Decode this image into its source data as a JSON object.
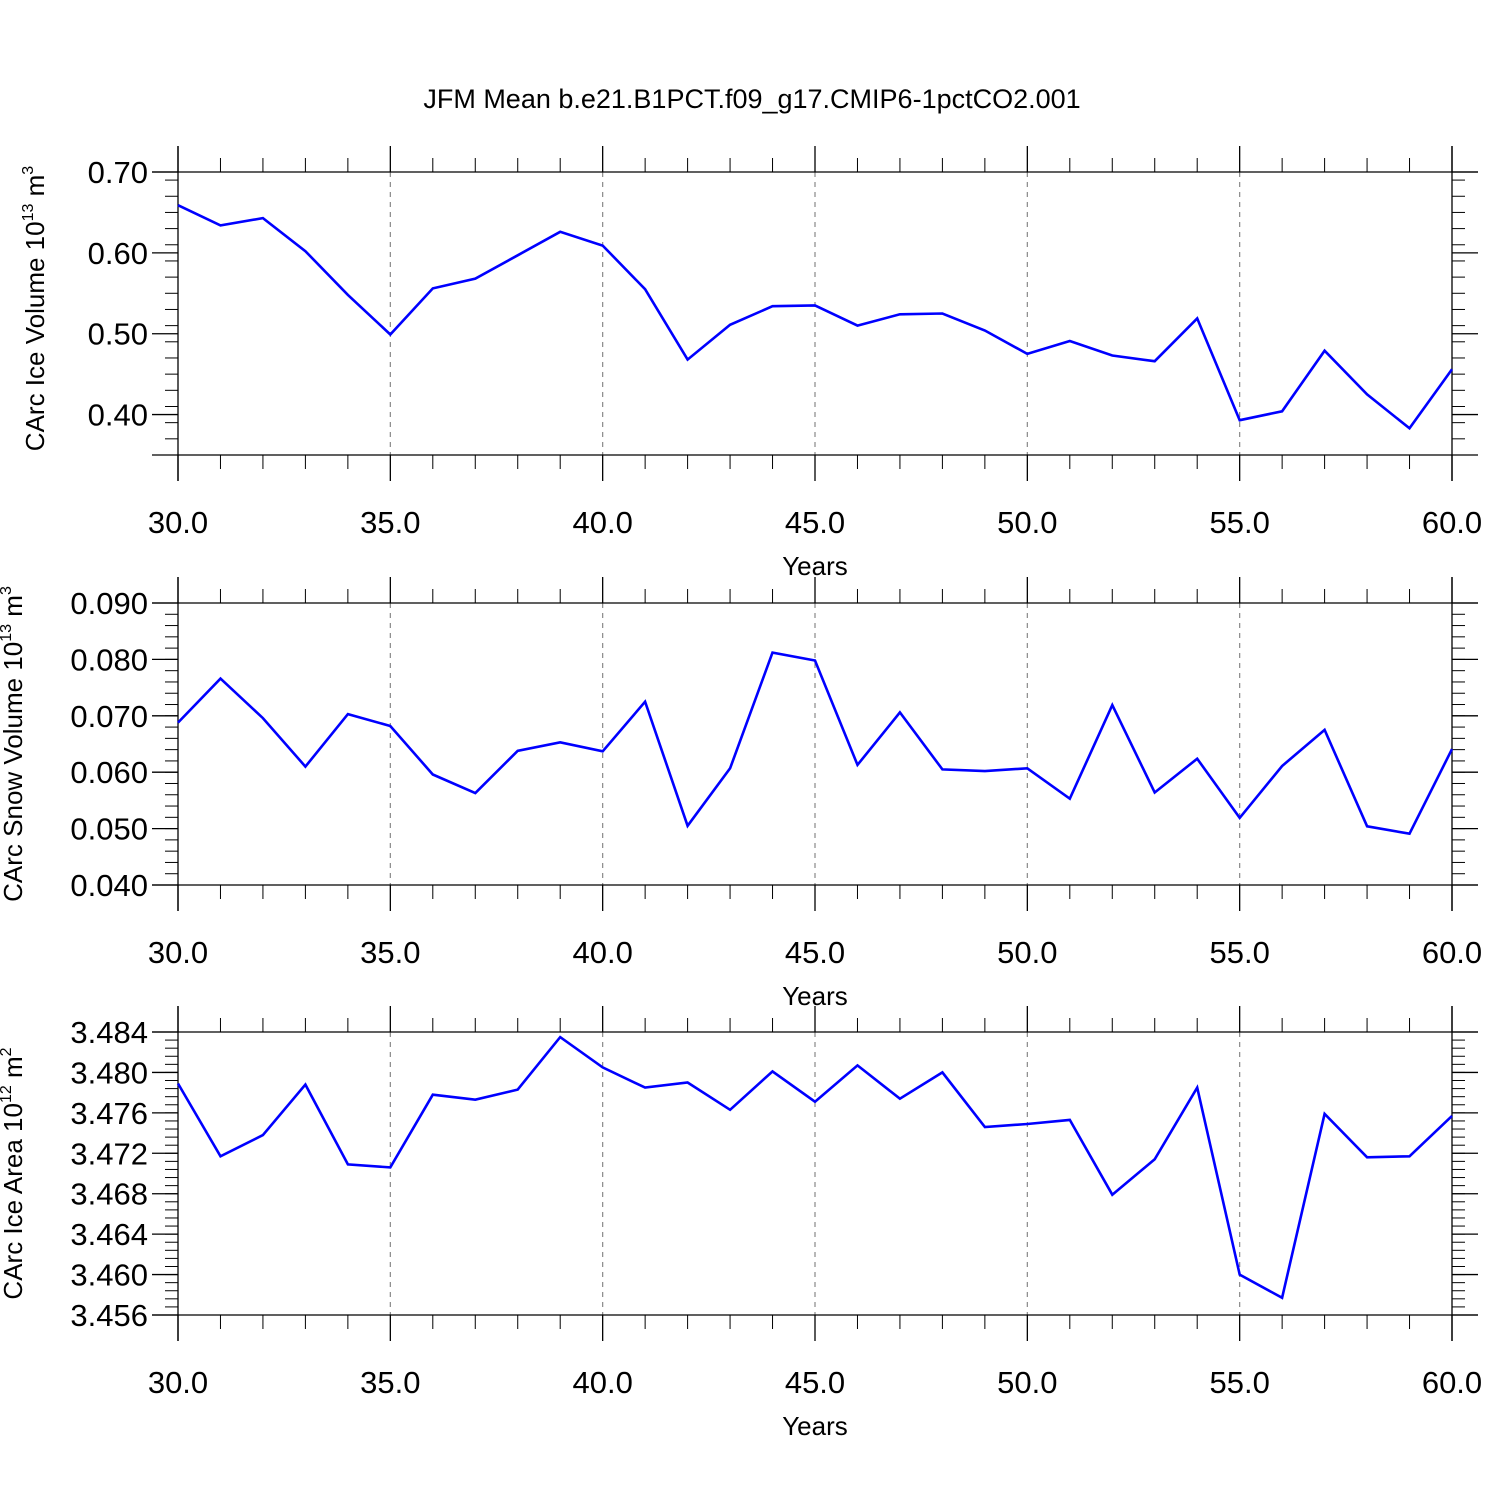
{
  "title": "JFM Mean b.e21.B1PCT.f09_g17.CMIP6-1pctCO2.001",
  "colors": {
    "line": "#0000ff",
    "axis": "#000000",
    "grid": "#888888",
    "background": "#ffffff"
  },
  "chart_data": [
    {
      "type": "line",
      "ylabel": {
        "text": "CArc Ice Volume 10",
        "exp": "13",
        "unit": " m",
        "unit_exp": "3"
      },
      "xlabel": "Years",
      "xlim": [
        30,
        60
      ],
      "ylim": [
        0.35,
        0.7
      ],
      "xticks": [
        30,
        35,
        40,
        45,
        50,
        55,
        60
      ],
      "xtick_labels": [
        "30.0",
        "35.0",
        "40.0",
        "45.0",
        "50.0",
        "55.0",
        "60.0"
      ],
      "yticks": [
        0.4,
        0.5,
        0.6,
        0.7
      ],
      "ytick_labels": [
        "0.40",
        "0.50",
        "0.60",
        "0.70"
      ],
      "y_minor_step": 0.02,
      "grid": "vertical dashed at major x ticks",
      "x": [
        30,
        31,
        32,
        33,
        34,
        35,
        36,
        37,
        38,
        39,
        40,
        41,
        42,
        43,
        44,
        45,
        46,
        47,
        48,
        49,
        50,
        51,
        52,
        53,
        54,
        55,
        56,
        57,
        58,
        59,
        60
      ],
      "y": [
        0.659,
        0.634,
        0.643,
        0.602,
        0.548,
        0.499,
        0.556,
        0.568,
        0.597,
        0.626,
        0.609,
        0.555,
        0.468,
        0.511,
        0.534,
        0.535,
        0.51,
        0.524,
        0.525,
        0.504,
        0.475,
        0.491,
        0.473,
        0.466,
        0.519,
        0.393,
        0.404,
        0.479,
        0.425,
        0.383,
        0.456
      ]
    },
    {
      "type": "line",
      "ylabel": {
        "text": "CArc Snow Volume 10",
        "exp": "13",
        "unit": " m",
        "unit_exp": "3"
      },
      "xlabel": "Years",
      "xlim": [
        30,
        60
      ],
      "ylim": [
        0.04,
        0.09
      ],
      "xticks": [
        30,
        35,
        40,
        45,
        50,
        55,
        60
      ],
      "xtick_labels": [
        "30.0",
        "35.0",
        "40.0",
        "45.0",
        "50.0",
        "55.0",
        "60.0"
      ],
      "yticks": [
        0.04,
        0.05,
        0.06,
        0.07,
        0.08,
        0.09
      ],
      "ytick_labels": [
        "0.040",
        "0.050",
        "0.060",
        "0.070",
        "0.080",
        "0.090"
      ],
      "y_minor_step": 0.002,
      "grid": "vertical dashed at major x ticks",
      "x": [
        30,
        31,
        32,
        33,
        34,
        35,
        36,
        37,
        38,
        39,
        40,
        41,
        42,
        43,
        44,
        45,
        46,
        47,
        48,
        49,
        50,
        51,
        52,
        53,
        54,
        55,
        56,
        57,
        58,
        59,
        60
      ],
      "y": [
        0.0688,
        0.0766,
        0.0696,
        0.061,
        0.0703,
        0.0682,
        0.0596,
        0.0563,
        0.0638,
        0.0653,
        0.0637,
        0.0725,
        0.0505,
        0.0607,
        0.0812,
        0.0798,
        0.0613,
        0.0706,
        0.0605,
        0.0602,
        0.0607,
        0.0553,
        0.0719,
        0.0564,
        0.0624,
        0.0519,
        0.0611,
        0.0675,
        0.0504,
        0.0491,
        0.0641
      ]
    },
    {
      "type": "line",
      "ylabel": {
        "text": "CArc Ice Area 10",
        "exp": "12",
        "unit": " m",
        "unit_exp": "2"
      },
      "xlabel": "Years",
      "xlim": [
        30,
        60
      ],
      "ylim": [
        3.456,
        3.484
      ],
      "xticks": [
        30,
        35,
        40,
        45,
        50,
        55,
        60
      ],
      "xtick_labels": [
        "30.0",
        "35.0",
        "40.0",
        "45.0",
        "50.0",
        "55.0",
        "60.0"
      ],
      "yticks": [
        3.456,
        3.46,
        3.464,
        3.468,
        3.472,
        3.476,
        3.48,
        3.484
      ],
      "ytick_labels": [
        "3.456",
        "3.460",
        "3.464",
        "3.468",
        "3.472",
        "3.476",
        "3.480",
        "3.484"
      ],
      "y_minor_step": 0.0008,
      "grid": "vertical dashed at major x ticks",
      "x": [
        30,
        31,
        32,
        33,
        34,
        35,
        36,
        37,
        38,
        39,
        40,
        41,
        42,
        43,
        44,
        45,
        46,
        47,
        48,
        49,
        50,
        51,
        52,
        53,
        54,
        55,
        56,
        57,
        58,
        59,
        60
      ],
      "y": [
        3.4789,
        3.4717,
        3.4738,
        3.4788,
        3.4709,
        3.4706,
        3.4778,
        3.4773,
        3.4783,
        3.4835,
        3.4805,
        3.4785,
        3.479,
        3.4763,
        3.4801,
        3.4771,
        3.4807,
        3.4774,
        3.48,
        3.4746,
        3.4749,
        3.4753,
        3.4679,
        3.4714,
        3.4785,
        3.46,
        3.4577,
        3.4759,
        3.4716,
        3.4717,
        3.4757
      ]
    }
  ]
}
